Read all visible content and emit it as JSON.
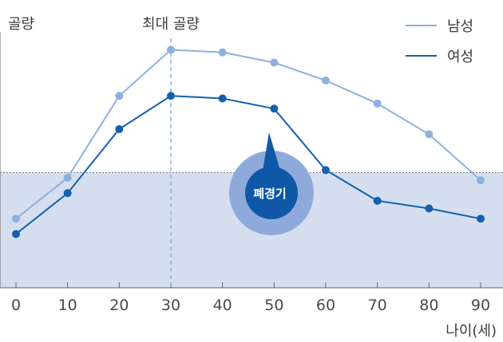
{
  "chart_data": {
    "type": "line",
    "ylabel": "골량",
    "xlabel": "나이(세)",
    "x": [
      0,
      10,
      20,
      30,
      40,
      50,
      60,
      70,
      80,
      90
    ],
    "xlim": [
      0,
      90
    ],
    "ylim": [
      0,
      100
    ],
    "series": [
      {
        "name": "남성",
        "color": "#8eb0dc",
        "values": [
          27,
          43,
          75,
          93,
          92,
          88,
          81,
          72,
          60,
          42
        ]
      },
      {
        "name": "여성",
        "color": "#1460ad",
        "values": [
          21,
          37,
          62,
          75,
          74,
          70,
          46,
          34,
          31,
          27
        ]
      }
    ],
    "annotations": {
      "peak_label": "최대 골량",
      "peak_x": 30,
      "menopause_label": "폐경기",
      "menopause_x": 50,
      "threshold_y": 45
    },
    "colors": {
      "band": "#d5deef",
      "badge_outer": "#8eaadb",
      "badge_inner": "#0f58a8"
    }
  }
}
